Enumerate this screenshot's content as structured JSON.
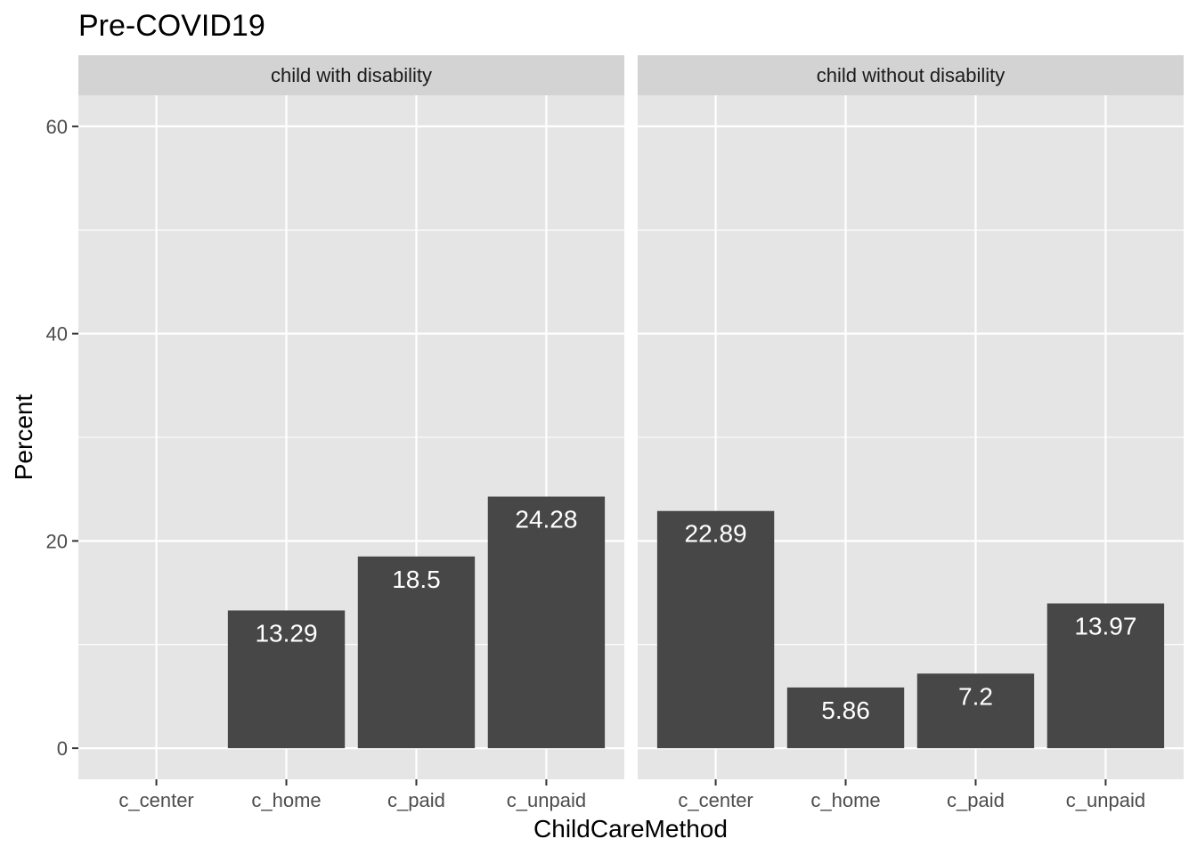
{
  "chart_data": {
    "type": "bar",
    "title": "Pre-COVID19",
    "xlabel": "ChildCareMethod",
    "ylabel": "Percent",
    "ylim": [
      -3,
      63
    ],
    "y_ticks": [
      0,
      20,
      40,
      60
    ],
    "categories": [
      "c_center",
      "c_home",
      "c_paid",
      "c_unpaid"
    ],
    "panels": [
      {
        "strip": "child with disability",
        "values": [
          null,
          13.29,
          18.5,
          24.28
        ],
        "labels": [
          "",
          "13.29",
          "18.5",
          "24.28"
        ]
      },
      {
        "strip": "child without disability",
        "values": [
          22.89,
          5.86,
          7.2,
          13.97
        ],
        "labels": [
          "22.89",
          "5.86",
          "7.2",
          "13.97"
        ]
      }
    ],
    "grid": true,
    "colors": {
      "panel_bg": "#e5e5e5",
      "strip_bg": "#d3d3d3",
      "bar": "#474747",
      "grid": "#ffffff",
      "bar_text": "#ffffff"
    }
  }
}
